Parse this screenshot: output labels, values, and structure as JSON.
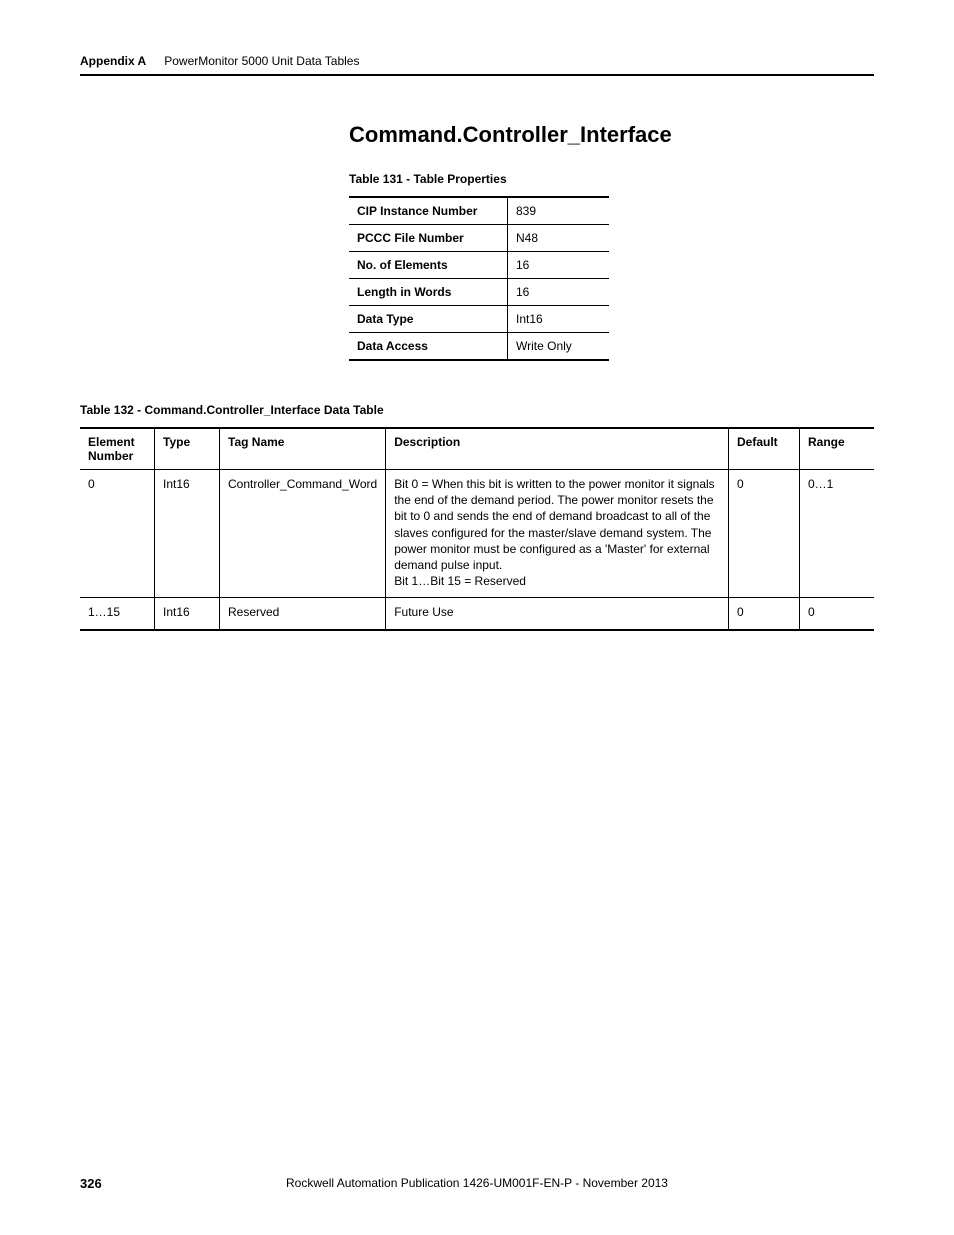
{
  "header": {
    "appendix": "Appendix A",
    "chapter": "PowerMonitor 5000 Unit Data Tables"
  },
  "section_title": "Command.Controller_Interface",
  "table131": {
    "caption": "Table 131 - Table Properties",
    "rows": [
      {
        "key": "CIP Instance Number",
        "val": "839"
      },
      {
        "key": "PCCC File Number",
        "val": "N48"
      },
      {
        "key": "No. of Elements",
        "val": "16"
      },
      {
        "key": "Length in Words",
        "val": "16"
      },
      {
        "key": "Data Type",
        "val": "Int16"
      },
      {
        "key": "Data Access",
        "val": "Write Only"
      }
    ]
  },
  "table132": {
    "caption": "Table 132 - Command.Controller_Interface Data Table",
    "columns": [
      "Element Number",
      "Type",
      "Tag Name",
      "Description",
      "Default",
      "Range"
    ],
    "rows": [
      {
        "elem": "0",
        "type": "Int16",
        "tag": "Controller_Command_Word",
        "desc": "Bit 0 = When this bit is written to the power monitor it signals the end of the demand period. The power monitor resets the bit to 0 and sends the end of demand broadcast to all of the slaves configured for the master/slave demand system. The power monitor must be configured as a 'Master' for external demand pulse input.\nBit 1…Bit 15 = Reserved",
        "def": "0",
        "range": "0…1"
      },
      {
        "elem": "1…15",
        "type": "Int16",
        "tag": "Reserved",
        "desc": "Future Use",
        "def": "0",
        "range": "0"
      }
    ]
  },
  "footer": {
    "page": "326",
    "publication": "Rockwell Automation Publication 1426-UM001F-EN-P - November 2013"
  }
}
